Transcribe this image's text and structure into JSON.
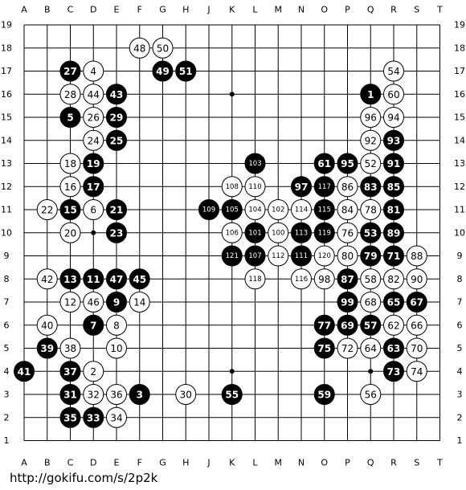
{
  "board": {
    "columns": [
      "A",
      "B",
      "C",
      "D",
      "E",
      "F",
      "G",
      "H",
      "J",
      "K",
      "L",
      "M",
      "N",
      "O",
      "P",
      "Q",
      "R",
      "S",
      "T"
    ],
    "rows": [
      "19",
      "18",
      "17",
      "16",
      "15",
      "14",
      "13",
      "12",
      "11",
      "10",
      "9",
      "8",
      "7",
      "6",
      "5",
      "4",
      "3",
      "2",
      "1"
    ],
    "hoshi": [
      "D10",
      "K16",
      "K4",
      "Q4"
    ],
    "stones": [
      {
        "point": "F18",
        "color": "white",
        "label": "48"
      },
      {
        "point": "G18",
        "color": "white",
        "label": "50"
      },
      {
        "point": "C17",
        "color": "black",
        "label": "27"
      },
      {
        "point": "D17",
        "color": "white",
        "label": "4"
      },
      {
        "point": "G17",
        "color": "black",
        "label": "49"
      },
      {
        "point": "H17",
        "color": "black",
        "label": "51"
      },
      {
        "point": "R17",
        "color": "white",
        "label": "54"
      },
      {
        "point": "C16",
        "color": "white",
        "label": "28"
      },
      {
        "point": "D16",
        "color": "white",
        "label": "44"
      },
      {
        "point": "E16",
        "color": "black",
        "label": "43"
      },
      {
        "point": "Q16",
        "color": "black",
        "label": "1"
      },
      {
        "point": "R16",
        "color": "white",
        "label": "60"
      },
      {
        "point": "C15",
        "color": "black",
        "label": "5"
      },
      {
        "point": "D15",
        "color": "white",
        "label": "26"
      },
      {
        "point": "E15",
        "color": "black",
        "label": "29"
      },
      {
        "point": "Q15",
        "color": "white",
        "label": "96"
      },
      {
        "point": "R15",
        "color": "white",
        "label": "94"
      },
      {
        "point": "D14",
        "color": "white",
        "label": "24"
      },
      {
        "point": "E14",
        "color": "black",
        "label": "25"
      },
      {
        "point": "Q14",
        "color": "white",
        "label": "92"
      },
      {
        "point": "R14",
        "color": "black",
        "label": "93"
      },
      {
        "point": "C13",
        "color": "white",
        "label": "18"
      },
      {
        "point": "D13",
        "color": "black",
        "label": "19"
      },
      {
        "point": "L13",
        "color": "black",
        "label": "103"
      },
      {
        "point": "O13",
        "color": "black",
        "label": "61"
      },
      {
        "point": "P13",
        "color": "black",
        "label": "95"
      },
      {
        "point": "Q13",
        "color": "white",
        "label": "52"
      },
      {
        "point": "R13",
        "color": "black",
        "label": "91"
      },
      {
        "point": "C12",
        "color": "white",
        "label": "16"
      },
      {
        "point": "D12",
        "color": "black",
        "label": "17"
      },
      {
        "point": "K12",
        "color": "white",
        "label": "108"
      },
      {
        "point": "L12",
        "color": "white",
        "label": "110"
      },
      {
        "point": "N12",
        "color": "black",
        "label": "97"
      },
      {
        "point": "O12",
        "color": "black",
        "label": "117"
      },
      {
        "point": "P12",
        "color": "white",
        "label": "86"
      },
      {
        "point": "Q12",
        "color": "black",
        "label": "83"
      },
      {
        "point": "R12",
        "color": "black",
        "label": "85"
      },
      {
        "point": "B11",
        "color": "white",
        "label": "22"
      },
      {
        "point": "C11",
        "color": "black",
        "label": "15"
      },
      {
        "point": "D11",
        "color": "white",
        "label": "6"
      },
      {
        "point": "E11",
        "color": "black",
        "label": "21"
      },
      {
        "point": "J11",
        "color": "black",
        "label": "109"
      },
      {
        "point": "K11",
        "color": "black",
        "label": "105"
      },
      {
        "point": "L11",
        "color": "white",
        "label": "104"
      },
      {
        "point": "M11",
        "color": "white",
        "label": "102"
      },
      {
        "point": "N11",
        "color": "white",
        "label": "114"
      },
      {
        "point": "O11",
        "color": "black",
        "label": "115"
      },
      {
        "point": "P11",
        "color": "white",
        "label": "84"
      },
      {
        "point": "Q11",
        "color": "white",
        "label": "78"
      },
      {
        "point": "R11",
        "color": "black",
        "label": "81"
      },
      {
        "point": "C10",
        "color": "white",
        "label": "20"
      },
      {
        "point": "E10",
        "color": "black",
        "label": "23"
      },
      {
        "point": "K10",
        "color": "white",
        "label": "106"
      },
      {
        "point": "L10",
        "color": "black",
        "label": "101"
      },
      {
        "point": "M10",
        "color": "white",
        "label": "100"
      },
      {
        "point": "N10",
        "color": "black",
        "label": "113"
      },
      {
        "point": "O10",
        "color": "black",
        "label": "119"
      },
      {
        "point": "P10",
        "color": "white",
        "label": "76"
      },
      {
        "point": "Q10",
        "color": "black",
        "label": "53"
      },
      {
        "point": "R10",
        "color": "black",
        "label": "89"
      },
      {
        "point": "K9",
        "color": "black",
        "label": "121"
      },
      {
        "point": "L9",
        "color": "black",
        "label": "107"
      },
      {
        "point": "M9",
        "color": "white",
        "label": "112"
      },
      {
        "point": "N9",
        "color": "black",
        "label": "111"
      },
      {
        "point": "O9",
        "color": "white",
        "label": "120"
      },
      {
        "point": "P9",
        "color": "white",
        "label": "80"
      },
      {
        "point": "Q9",
        "color": "black",
        "label": "79"
      },
      {
        "point": "R9",
        "color": "black",
        "label": "71"
      },
      {
        "point": "S9",
        "color": "white",
        "label": "88"
      },
      {
        "point": "B8",
        "color": "white",
        "label": "42"
      },
      {
        "point": "C8",
        "color": "black",
        "label": "13"
      },
      {
        "point": "D8",
        "color": "black",
        "label": "11"
      },
      {
        "point": "E8",
        "color": "black",
        "label": "47"
      },
      {
        "point": "F8",
        "color": "black",
        "label": "45"
      },
      {
        "point": "L8",
        "color": "white",
        "label": "118"
      },
      {
        "point": "N8",
        "color": "white",
        "label": "116"
      },
      {
        "point": "O8",
        "color": "white",
        "label": "98"
      },
      {
        "point": "P8",
        "color": "black",
        "label": "87"
      },
      {
        "point": "Q8",
        "color": "white",
        "label": "58"
      },
      {
        "point": "R8",
        "color": "white",
        "label": "82"
      },
      {
        "point": "S8",
        "color": "white",
        "label": "90"
      },
      {
        "point": "C7",
        "color": "white",
        "label": "12"
      },
      {
        "point": "D7",
        "color": "white",
        "label": "46"
      },
      {
        "point": "E7",
        "color": "black",
        "label": "9"
      },
      {
        "point": "F7",
        "color": "white",
        "label": "14"
      },
      {
        "point": "P7",
        "color": "black",
        "label": "99"
      },
      {
        "point": "Q7",
        "color": "white",
        "label": "68"
      },
      {
        "point": "R7",
        "color": "black",
        "label": "65"
      },
      {
        "point": "S7",
        "color": "black",
        "label": "67"
      },
      {
        "point": "B6",
        "color": "white",
        "label": "40"
      },
      {
        "point": "D6",
        "color": "black",
        "label": "7"
      },
      {
        "point": "E6",
        "color": "white",
        "label": "8"
      },
      {
        "point": "O6",
        "color": "black",
        "label": "77"
      },
      {
        "point": "P6",
        "color": "black",
        "label": "69"
      },
      {
        "point": "Q6",
        "color": "black",
        "label": "57"
      },
      {
        "point": "R6",
        "color": "white",
        "label": "62"
      },
      {
        "point": "S6",
        "color": "white",
        "label": "66"
      },
      {
        "point": "B5",
        "color": "black",
        "label": "39"
      },
      {
        "point": "C5",
        "color": "white",
        "label": "38"
      },
      {
        "point": "E5",
        "color": "white",
        "label": "10"
      },
      {
        "point": "O5",
        "color": "black",
        "label": "75"
      },
      {
        "point": "P5",
        "color": "white",
        "label": "72"
      },
      {
        "point": "Q5",
        "color": "white",
        "label": "64"
      },
      {
        "point": "R5",
        "color": "black",
        "label": "63"
      },
      {
        "point": "S5",
        "color": "white",
        "label": "70"
      },
      {
        "point": "A4",
        "color": "black",
        "label": "41"
      },
      {
        "point": "C4",
        "color": "black",
        "label": "37"
      },
      {
        "point": "D4",
        "color": "white",
        "label": "2"
      },
      {
        "point": "R4",
        "color": "black",
        "label": "73"
      },
      {
        "point": "S4",
        "color": "white",
        "label": "74"
      },
      {
        "point": "C3",
        "color": "black",
        "label": "31"
      },
      {
        "point": "D3",
        "color": "white",
        "label": "32"
      },
      {
        "point": "E3",
        "color": "white",
        "label": "36"
      },
      {
        "point": "F3",
        "color": "black",
        "label": "3"
      },
      {
        "point": "H3",
        "color": "white",
        "label": "30"
      },
      {
        "point": "K3",
        "color": "black",
        "label": "55"
      },
      {
        "point": "O3",
        "color": "black",
        "label": "59"
      },
      {
        "point": "Q3",
        "color": "white",
        "label": "56"
      },
      {
        "point": "C2",
        "color": "black",
        "label": "35"
      },
      {
        "point": "D2",
        "color": "black",
        "label": "33"
      },
      {
        "point": "E2",
        "color": "white",
        "label": "34"
      }
    ]
  },
  "footer": {
    "url": "http://gokifu.com/s/2p2k"
  }
}
